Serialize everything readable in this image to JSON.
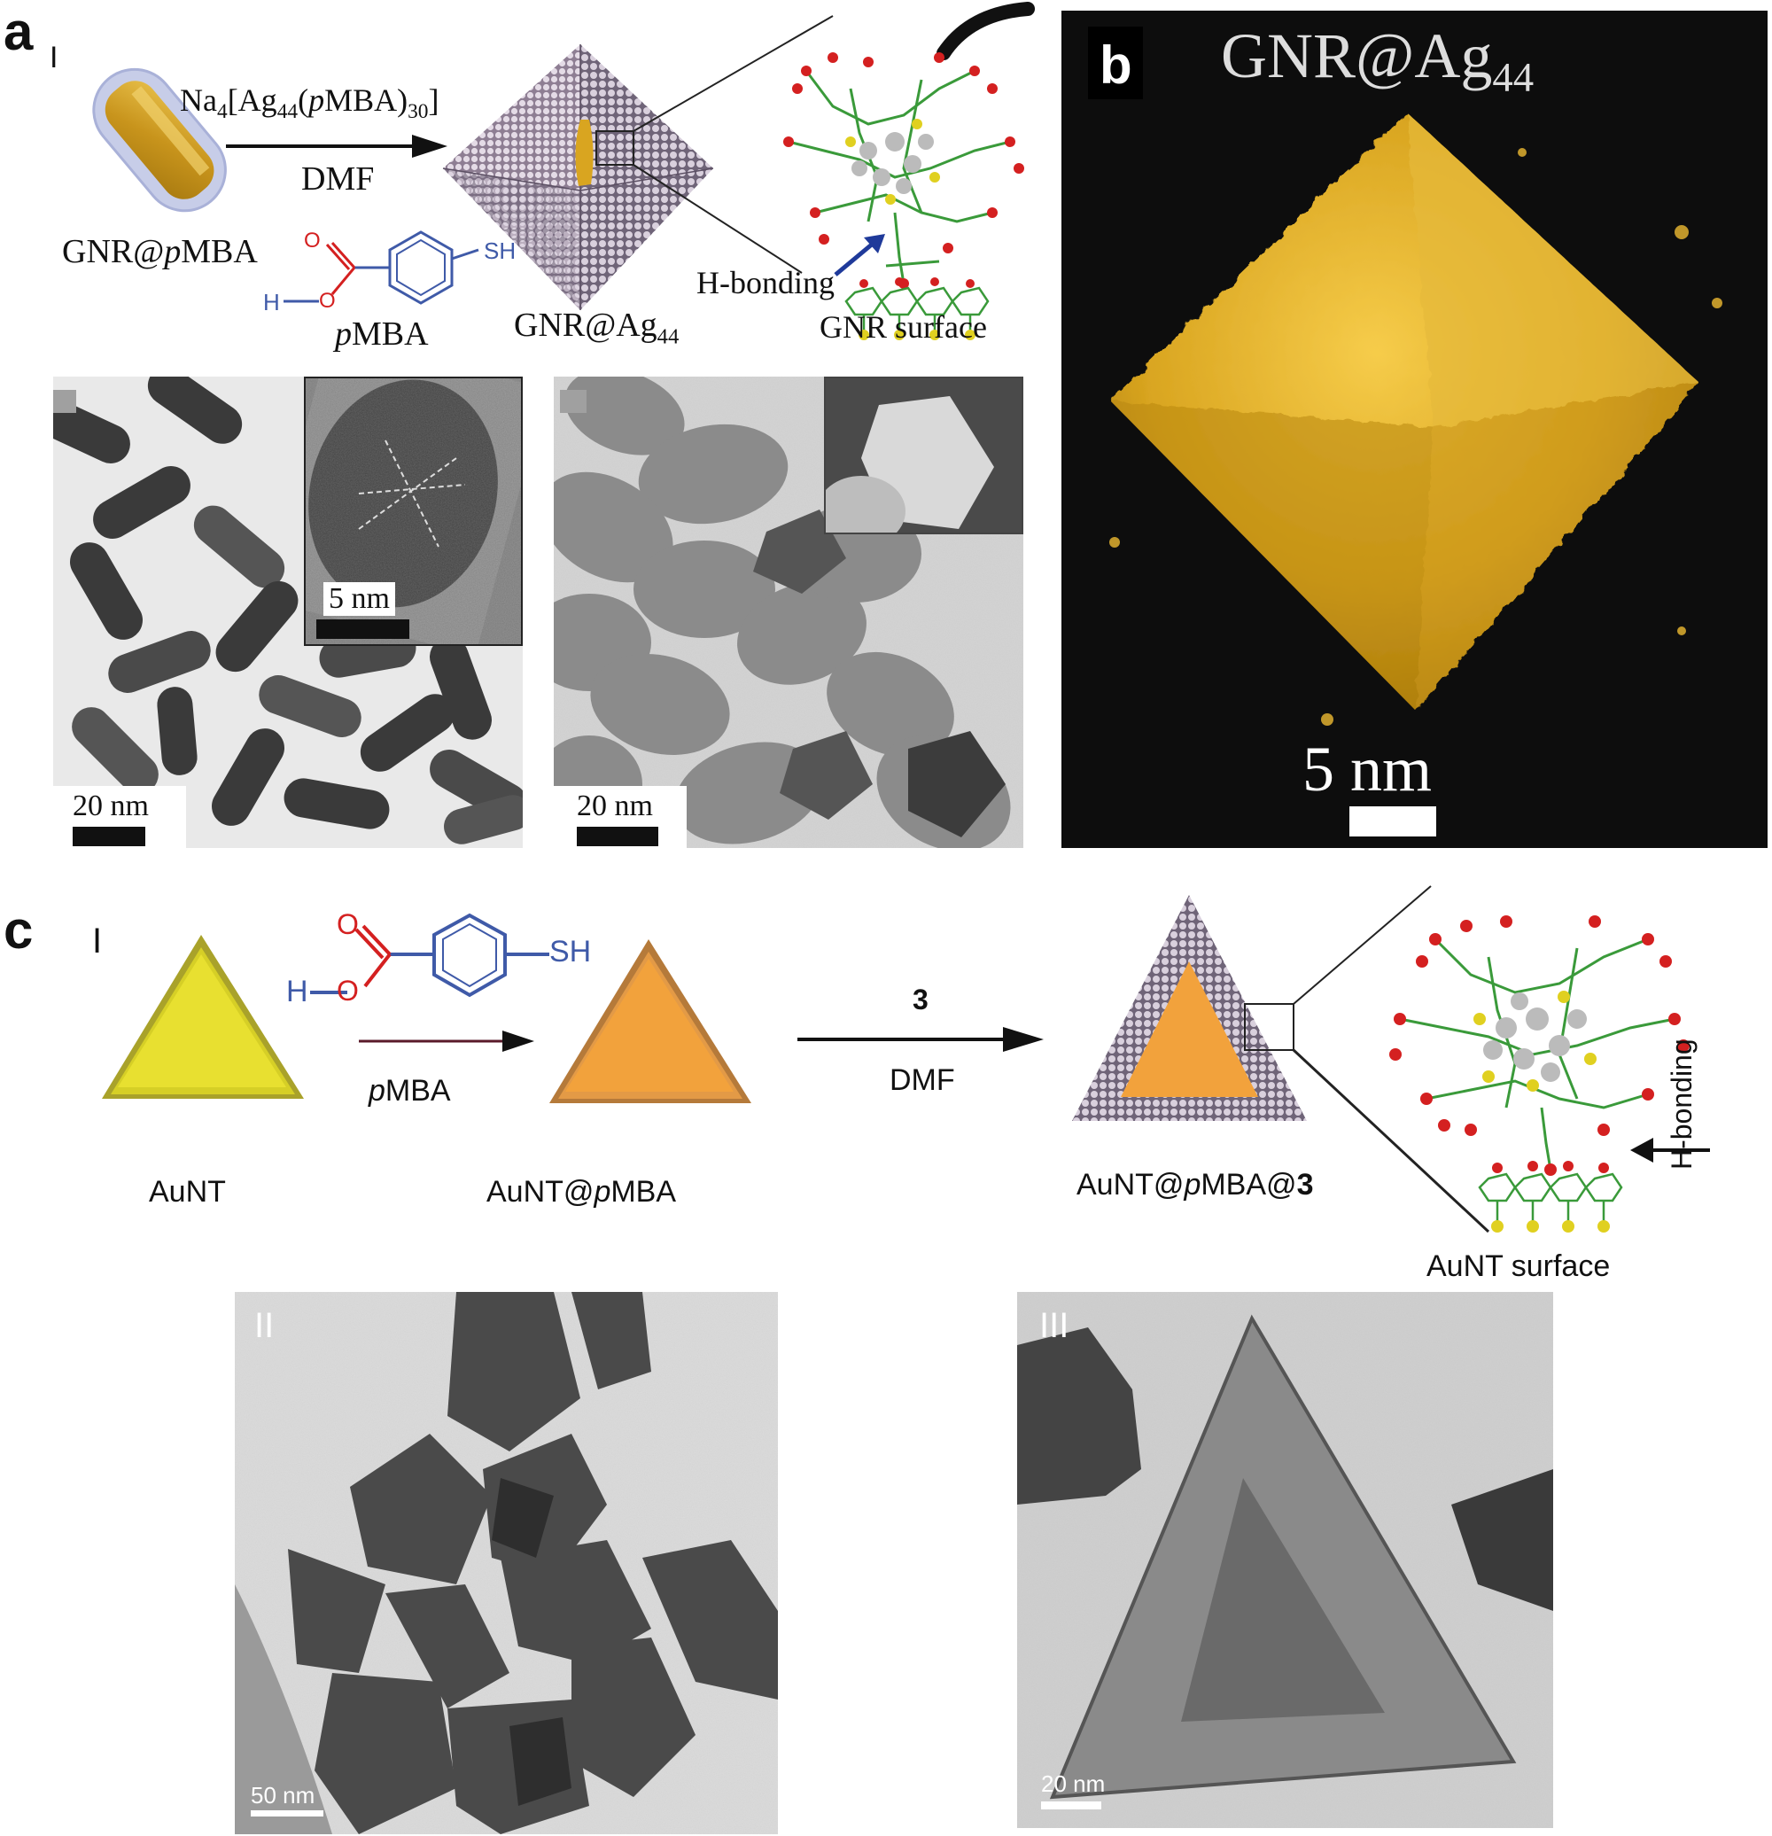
{
  "panel_a": {
    "letter": "a",
    "roman": "I",
    "reagent": "Na",
    "reagent_sub1": "4",
    "reagent_mid": "[Ag",
    "reagent_sub2": "44",
    "reagent_mid2": "(",
    "reagent_italic": "p",
    "reagent_mid3": "MBA)",
    "reagent_sub3": "30",
    "reagent_end": "]",
    "solvent": "DMF",
    "label_gnr_pmba_pre": "GNR@",
    "label_gnr_pmba_it": "p",
    "label_gnr_pmba_post": "MBA",
    "label_gnr_ag_pre": "GNR@Ag",
    "label_gnr_ag_sub": "44",
    "label_pmba_it": "p",
    "label_pmba_post": "MBA",
    "h_bonding": "H-bonding",
    "gnr_surface": "GNR surface",
    "sh": "SH",
    "h": "H",
    "o": "O",
    "tem1_scale": "20 nm",
    "tem1_inset_scale": "5 nm",
    "tem2_scale": "20 nm"
  },
  "panel_b": {
    "letter": "b",
    "title_pre": "GNR@Ag",
    "title_sub": "44",
    "scale": "5 nm"
  },
  "panel_c": {
    "letter": "c",
    "roman": "I",
    "aunt": "AuNT",
    "pmba_it": "p",
    "pmba_post": "MBA",
    "aunt_pmba_pre": "AuNT@",
    "aunt_pmba_it": "p",
    "aunt_pmba_post": "MBA",
    "reagent_num": "3",
    "solvent": "DMF",
    "aunt_pmba3_pre": "AuNT@",
    "aunt_pmba3_it": "p",
    "aunt_pmba3_mid": "MBA@",
    "aunt_pmba3_bold": "3",
    "h_bonding": "H-bonding",
    "aunt_surface": "AuNT surface",
    "sh": "SH",
    "h": "H",
    "o": "O",
    "roman_ii": "II",
    "roman_iii": "III",
    "tem2_scale": "50 nm",
    "tem3_scale": "20 nm"
  },
  "colors": {
    "gold": "#d9a520",
    "lattice": "#b9a8bd",
    "orange": "#f2a23c",
    "yellow": "#e6de2a",
    "mol_green": "#3a9a3a",
    "mol_red": "#d42020",
    "mol_yellow": "#e0d020",
    "mol_gray": "#bbbbbb"
  }
}
